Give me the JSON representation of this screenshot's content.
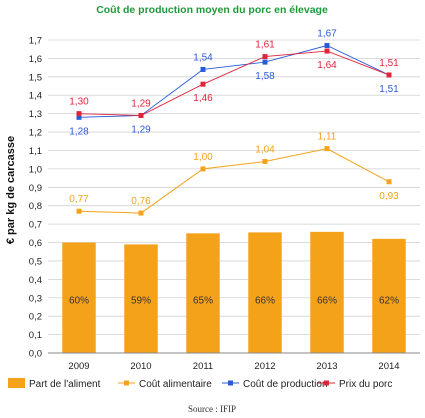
{
  "chart_data": {
    "type": "bar",
    "title": "Coût de production moyen du porc en élevage",
    "ylabel": "€ par kg de carcasse",
    "xlabel": "",
    "source": "Source : IFIP",
    "ylim": [
      0,
      1.7
    ],
    "ytick_labels": [
      "0,0",
      "0,1",
      "0,2",
      "0,3",
      "0,4",
      "0,5",
      "0,6",
      "0,7",
      "0,8",
      "0,9",
      "1,0",
      "1,1",
      "1,2",
      "1,3",
      "1,4",
      "1,5",
      "1,6",
      "1,7"
    ],
    "grid": true,
    "legend_position": "bottom",
    "categories": [
      "2009",
      "2010",
      "2011",
      "2012",
      "2013",
      "2014"
    ],
    "series": [
      {
        "name": "Part de l'aliment",
        "kind": "bar",
        "color": "#f5a21b",
        "values": [
          0.6,
          0.59,
          0.65,
          0.655,
          0.658,
          0.62
        ],
        "labels": [
          "60%",
          "59%",
          "65%",
          "66%",
          "66%",
          "62%"
        ]
      },
      {
        "name": "Coût alimentaire",
        "kind": "line",
        "color": "#f5a21b",
        "values": [
          0.77,
          0.76,
          1.0,
          1.04,
          1.11,
          0.93
        ],
        "labels": [
          "0,77",
          "0,76",
          "1,00",
          "1,04",
          "1,11",
          "0,93"
        ]
      },
      {
        "name": "Coût de production",
        "kind": "line",
        "color": "#2a5bd7",
        "values": [
          1.28,
          1.29,
          1.54,
          1.58,
          1.67,
          1.51
        ],
        "labels": [
          "1,28",
          "1,29",
          "1,54",
          "1,58",
          "1,67",
          "1,51"
        ]
      },
      {
        "name": "Prix du porc",
        "kind": "line",
        "color": "#e0243a",
        "values": [
          1.3,
          1.29,
          1.46,
          1.61,
          1.64,
          1.51
        ],
        "labels": [
          "1,30",
          "1,29",
          "1,46",
          "1,61",
          "1,64",
          "1,51"
        ]
      }
    ],
    "title_color": "#1e9a3a",
    "pct_label_color": "#333333",
    "grid_color": "#d0d0d0"
  }
}
